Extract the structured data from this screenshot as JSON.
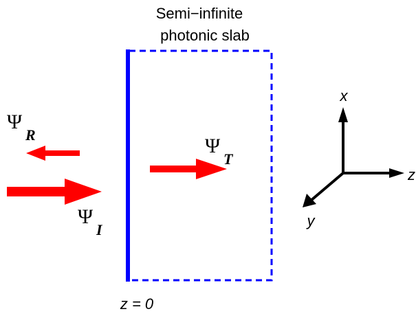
{
  "slab": {
    "title_line1": "Semi−infinite",
    "title_line2": "photonic slab",
    "interface_label": "z = 0",
    "interface_color": "#0000ff",
    "boundary_color": "#0000ff"
  },
  "waves": {
    "reflected": {
      "symbol": "Ψ",
      "subscript": "R",
      "color": "#ff0000"
    },
    "incident": {
      "symbol": "Ψ",
      "subscript": "I",
      "color": "#ff0000"
    },
    "transmitted": {
      "symbol": "Ψ",
      "subscript": "T",
      "color": "#ff0000"
    }
  },
  "axes": {
    "x_label": "x",
    "y_label": "y",
    "z_label": "z",
    "color": "#000000"
  }
}
